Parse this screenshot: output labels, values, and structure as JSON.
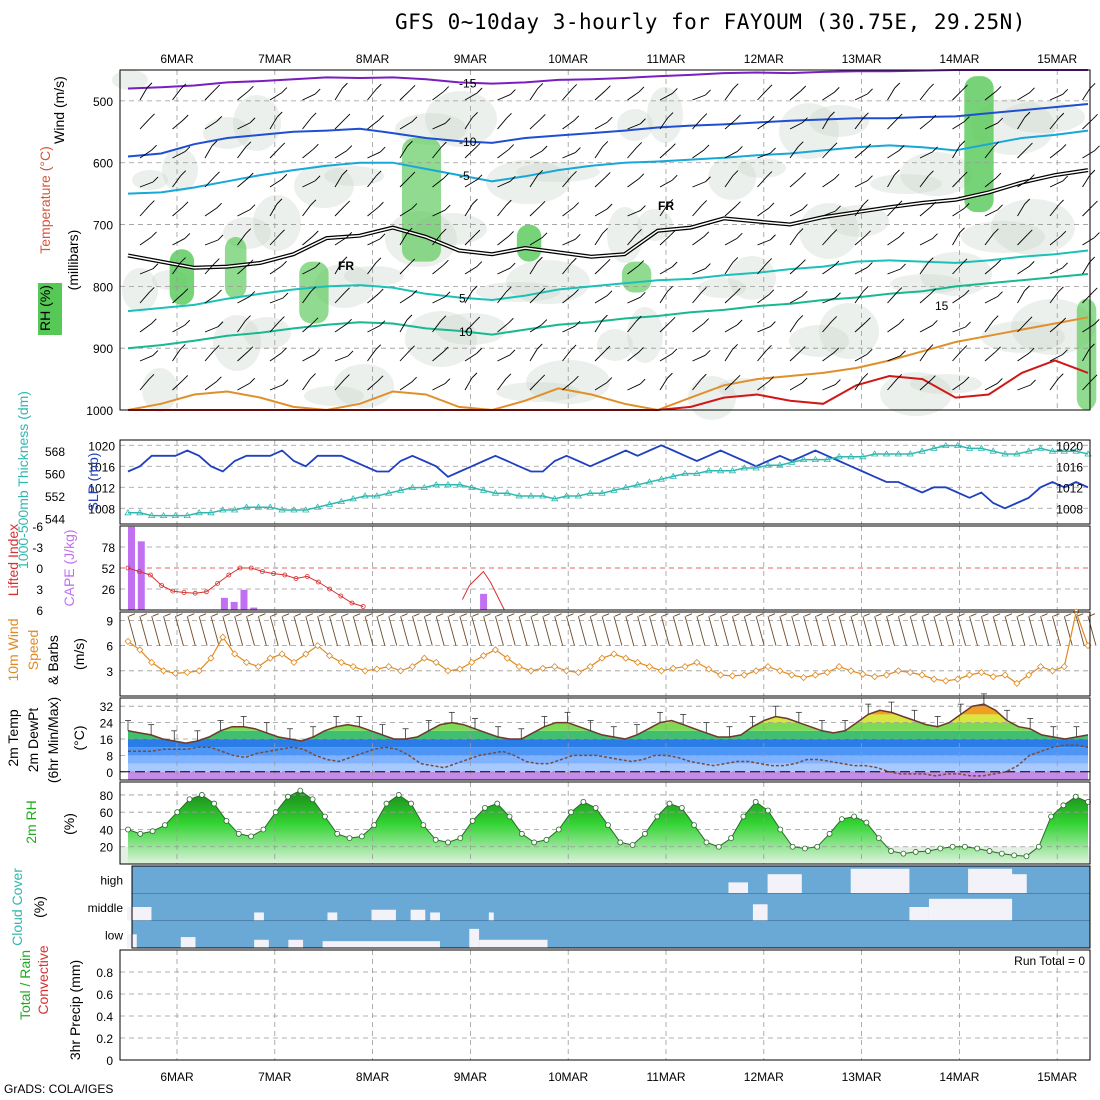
{
  "title": "GFS 0~10day 3-hourly for FAYOUM (30.75E, 29.25N)",
  "credit": "GrADS: COLA/IGES",
  "colors": {
    "wind_contour": "#1f4fd1",
    "temp_cold": "#18b8c8",
    "temp_warm": "#e0902a",
    "rh_fill": "#55c855",
    "slp": "#2040c0",
    "thickness": "#30b8b0",
    "lifted": "#d83030",
    "cape": "#c070f0",
    "wind10": "#e08a20",
    "rh2m": "#22aa22",
    "cloud_bg": "#6aa9d6"
  },
  "chart_data": [
    {
      "type": "heatmap",
      "name": "upper-air",
      "x_dates": [
        "6MAR",
        "7MAR",
        "8MAR",
        "9MAR",
        "10MAR",
        "11MAR",
        "12MAR",
        "13MAR",
        "14MAR",
        "15MAR"
      ],
      "ylabel_wind": "Wind (m/s)",
      "ylabel_temp": "Temperature (°C)",
      "ylabel_rh": "RH (%)",
      "ylabel_units": "(millibars)",
      "y_ticks": [
        500,
        600,
        700,
        800,
        900,
        1000
      ],
      "ylim": [
        450,
        1000
      ],
      "contour_labels": [
        "-15",
        "-10",
        "-10",
        "-5",
        "-5",
        "-5",
        "FR",
        "FR",
        "-5",
        "5",
        "10",
        "15",
        "-10",
        "-15",
        "10",
        "10"
      ],
      "fr_line": [
        750,
        760,
        770,
        768,
        762,
        748,
        722,
        718,
        705,
        720,
        742,
        748,
        738,
        745,
        752,
        748,
        710,
        705,
        690,
        695,
        700,
        688,
        680,
        672,
        665,
        660,
        648,
        632,
        620,
        612
      ],
      "temp_isotherms": [
        {
          "label": "-15",
          "p": [
            480,
            478,
            475,
            470,
            468,
            465,
            462,
            463,
            462,
            465,
            470,
            472,
            470,
            466,
            465,
            463,
            460,
            458,
            455,
            454,
            455,
            453,
            452,
            452,
            451,
            450,
            450,
            450,
            450,
            450
          ]
        },
        {
          "label": "-10",
          "p": [
            590,
            585,
            570,
            560,
            555,
            550,
            548,
            545,
            552,
            560,
            565,
            568,
            560,
            556,
            552,
            548,
            543,
            540,
            538,
            535,
            532,
            530,
            528,
            528,
            526,
            525,
            520,
            515,
            510,
            505
          ]
        },
        {
          "label": "-5",
          "p": [
            650,
            648,
            640,
            630,
            620,
            612,
            605,
            600,
            600,
            610,
            620,
            630,
            622,
            612,
            605,
            600,
            598,
            595,
            592,
            588,
            585,
            580,
            575,
            572,
            575,
            580,
            570,
            560,
            555,
            548
          ]
        },
        {
          "label": "5",
          "p": [
            840,
            835,
            830,
            820,
            812,
            805,
            800,
            798,
            802,
            812,
            818,
            822,
            815,
            805,
            800,
            795,
            790,
            788,
            782,
            778,
            772,
            768,
            760,
            758,
            760,
            762,
            758,
            752,
            748,
            742
          ]
        },
        {
          "label": "10",
          "p": [
            900,
            895,
            888,
            880,
            875,
            868,
            862,
            858,
            860,
            868,
            872,
            878,
            870,
            862,
            858,
            852,
            848,
            842,
            838,
            832,
            828,
            822,
            818,
            812,
            808,
            800,
            795,
            790,
            785,
            780
          ]
        }
      ],
      "warm_isotherms": [
        {
          "label": "15",
          "p": [
            1000,
            990,
            975,
            970,
            980,
            995,
            1000,
            990,
            970,
            975,
            995,
            1000,
            985,
            965,
            975,
            990,
            1000,
            980,
            960,
            950,
            945,
            940,
            932,
            920,
            905,
            890,
            880,
            870,
            860,
            850
          ]
        },
        {
          "label": "20",
          "p": [
            1000,
            1000,
            1000,
            1000,
            1000,
            1000,
            1000,
            1000,
            1000,
            1000,
            1000,
            1000,
            1000,
            1000,
            1000,
            1000,
            1000,
            995,
            980,
            975,
            985,
            990,
            960,
            945,
            950,
            980,
            975,
            940,
            920,
            940
          ]
        }
      ],
      "rh_patches": [
        {
          "day": 0.05,
          "p0": 740,
          "p1": 830,
          "w": 0.25,
          "level": 3
        },
        {
          "day": 0.6,
          "p0": 720,
          "p1": 820,
          "w": 0.22,
          "level": 2
        },
        {
          "day": 1.4,
          "p0": 760,
          "p1": 860,
          "w": 0.3,
          "level": 2
        },
        {
          "day": 2.5,
          "p0": 560,
          "p1": 760,
          "w": 0.4,
          "level": 2
        },
        {
          "day": 3.6,
          "p0": 700,
          "p1": 760,
          "w": 0.25,
          "level": 3
        },
        {
          "day": 4.7,
          "p0": 760,
          "p1": 810,
          "w": 0.3,
          "level": 2
        },
        {
          "day": 8.2,
          "p0": 460,
          "p1": 680,
          "w": 0.3,
          "level": 3
        },
        {
          "day": 9.3,
          "p0": 820,
          "p1": 1000,
          "w": 0.2,
          "level": 2
        }
      ]
    },
    {
      "type": "line",
      "name": "slp-thickness",
      "ylabel_slp": "SLP (mb)",
      "ylabel_thick": "1000-500mb Thickness (dm)",
      "slp_ticks": [
        1008,
        1012,
        1016,
        1020
      ],
      "slp_lim": [
        1005,
        1021
      ],
      "thick_ticks": [
        544,
        552,
        560,
        568
      ],
      "thick_lim": [
        542,
        572
      ],
      "slp": [
        1015,
        1016,
        1018,
        1018,
        1018,
        1019,
        1018,
        1016,
        1015,
        1017,
        1018,
        1018,
        1018,
        1019,
        1017,
        1016,
        1018,
        1018,
        1018,
        1017,
        1016,
        1015,
        1015,
        1017,
        1018,
        1017,
        1016,
        1014,
        1015,
        1016,
        1017,
        1018,
        1017,
        1016,
        1015,
        1015,
        1017,
        1018,
        1017,
        1016,
        1017,
        1018,
        1019,
        1018,
        1019,
        1020,
        1019,
        1018,
        1017,
        1018,
        1019,
        1018,
        1017,
        1016,
        1017,
        1018,
        1017,
        1018,
        1019,
        1018,
        1017,
        1016,
        1015,
        1014,
        1013,
        1013,
        1012,
        1011,
        1012,
        1012,
        1011,
        1010,
        1011,
        1009,
        1008,
        1009,
        1010,
        1012,
        1013,
        1012,
        1013,
        1012
      ],
      "thickness": [
        546,
        546,
        545,
        545,
        545,
        545,
        546,
        546,
        547,
        547,
        548,
        548,
        548,
        547,
        547,
        547,
        548,
        549,
        550,
        551,
        552,
        552,
        553,
        554,
        555,
        555,
        556,
        556,
        556,
        555,
        554,
        553,
        553,
        552,
        552,
        552,
        551,
        552,
        552,
        553,
        553,
        554,
        555,
        556,
        557,
        558,
        559,
        560,
        560,
        561,
        561,
        561,
        562,
        562,
        563,
        563,
        564,
        565,
        565,
        565,
        566,
        566,
        566,
        567,
        567,
        567,
        567,
        568,
        569,
        570,
        570,
        569,
        569,
        568,
        567,
        567,
        568,
        569,
        568,
        568,
        568,
        567
      ]
    },
    {
      "type": "bar",
      "name": "lifted-cape",
      "ylabel_li": "Lifted Index",
      "ylabel_cape": "CAPE (J/kg)",
      "li_ticks": [
        "6",
        "3",
        "0",
        "-3",
        "-6"
      ],
      "li_lim": [
        6,
        -6
      ],
      "cape_ticks": [
        26,
        52,
        78
      ],
      "cape_lim": [
        0,
        104
      ],
      "lifted": [
        0,
        0.5,
        1,
        2.5,
        3.3,
        3.5,
        3.6,
        3.4,
        2.2,
        1,
        0,
        0,
        0.5,
        0.8,
        1,
        1.5,
        1.2,
        2,
        3,
        4,
        5,
        5.5
      ],
      "lifted_start_index": 0,
      "lifted2": [
        4.5,
        2.5,
        1.5,
        0.5,
        2,
        4,
        6
      ],
      "lifted2_start_day": 3.45,
      "cape_bars": [
        {
          "day": 0.0,
          "v": 103
        },
        {
          "day": 0.1,
          "v": 85
        },
        {
          "day": 0.95,
          "v": 15
        },
        {
          "day": 1.05,
          "v": 10
        },
        {
          "day": 1.15,
          "v": 25
        },
        {
          "day": 1.25,
          "v": 3
        },
        {
          "day": 3.6,
          "v": 20
        }
      ]
    },
    {
      "type": "line",
      "name": "wind10m",
      "ylabel": "10m Wind Speed & Barbs (m/s)",
      "y_ticks": [
        3,
        6,
        9
      ],
      "ylim": [
        0,
        10
      ],
      "values": [
        6.5,
        5.5,
        4,
        3,
        2.7,
        2.8,
        3,
        4.5,
        7,
        5,
        4,
        3.5,
        4.5,
        5,
        4,
        5,
        6,
        4.8,
        4,
        3.5,
        3,
        3.2,
        3.5,
        3,
        3.5,
        4.5,
        4,
        3,
        3.2,
        4,
        4.8,
        5.5,
        4.5,
        3.5,
        3,
        3.3,
        3.5,
        3,
        2.8,
        3.5,
        4.5,
        5,
        4.5,
        4,
        3.5,
        3,
        3.3,
        3.5,
        4,
        3.2,
        2.5,
        2.4,
        2.5,
        3,
        3.5,
        3,
        2.5,
        2.2,
        2.5,
        2.8,
        3.5,
        3,
        2.6,
        2.3,
        2.5,
        3,
        2.8,
        2.5,
        2,
        1.8,
        2,
        2.5,
        2.8,
        2.3,
        2.5,
        1.5,
        2.5,
        3.5,
        3,
        3.5,
        10,
        6
      ]
    },
    {
      "type": "area",
      "name": "temperature",
      "ylabel": "2m Temp 2m DewPt (6hr Min/Max) (°C)",
      "y_ticks": [
        0,
        8,
        16,
        24,
        32
      ],
      "ylim": [
        -4,
        36
      ],
      "temp": [
        20,
        19,
        18,
        16,
        15,
        14,
        15,
        17,
        20,
        22,
        22,
        21,
        19,
        17,
        16,
        15,
        17,
        20,
        22,
        23,
        22,
        20,
        18,
        16,
        16,
        17,
        20,
        23,
        24,
        23,
        21,
        19,
        17,
        16,
        16,
        19,
        22,
        24,
        24,
        22,
        20,
        18,
        17,
        16,
        18,
        21,
        24,
        25,
        23,
        21,
        19,
        17,
        17,
        18,
        22,
        25,
        27,
        26,
        24,
        22,
        20,
        19,
        20,
        24,
        28,
        30,
        29,
        27,
        25,
        23,
        22,
        24,
        28,
        32,
        33,
        30,
        25,
        22,
        21,
        18,
        17,
        16,
        17,
        18
      ],
      "dewpt": [
        10,
        10,
        10,
        11,
        11,
        11,
        12,
        12,
        10,
        8,
        7,
        9,
        10,
        11,
        12,
        11,
        8,
        6,
        5,
        7,
        9,
        11,
        12,
        11,
        8,
        4,
        3,
        2,
        4,
        6,
        8,
        9,
        10,
        8,
        5,
        4,
        4,
        6,
        8,
        8,
        8,
        7,
        6,
        5,
        6,
        8,
        8,
        7,
        5,
        4,
        3,
        4,
        5,
        5,
        4,
        3,
        3,
        4,
        6,
        6,
        5,
        4,
        3,
        3,
        2,
        0,
        -1,
        -1,
        -1,
        -2,
        -1,
        -1,
        -2,
        -2,
        -1,
        0,
        3,
        8,
        10,
        12,
        13,
        13,
        12
      ]
    },
    {
      "type": "area",
      "name": "rh2m",
      "ylabel": "2m RH (%)",
      "y_ticks": [
        20,
        40,
        60,
        80
      ],
      "ylim": [
        0,
        95
      ],
      "values": [
        40,
        35,
        38,
        45,
        60,
        75,
        80,
        70,
        50,
        35,
        32,
        40,
        60,
        78,
        85,
        75,
        55,
        35,
        30,
        32,
        45,
        70,
        80,
        70,
        45,
        28,
        25,
        30,
        50,
        65,
        70,
        55,
        35,
        25,
        28,
        40,
        60,
        72,
        65,
        45,
        25,
        22,
        35,
        55,
        70,
        65,
        45,
        25,
        20,
        30,
        55,
        72,
        62,
        40,
        20,
        18,
        20,
        35,
        52,
        55,
        48,
        30,
        15,
        12,
        14,
        15,
        18,
        20,
        20,
        18,
        15,
        12,
        10,
        9,
        20,
        55,
        68,
        78,
        72
      ]
    },
    {
      "type": "heatmap",
      "name": "cloud-cover",
      "ylabel": "Cloud Cover (%)",
      "y_labels": [
        "high",
        "middle",
        "low"
      ],
      "high_blocks": [
        {
          "d0": 6.15,
          "d1": 6.35,
          "a": 0.4
        },
        {
          "d0": 6.55,
          "d1": 6.9,
          "a": 0.7
        },
        {
          "d0": 7.4,
          "d1": 8.0,
          "a": 0.9
        },
        {
          "d0": 8.6,
          "d1": 9.05,
          "a": 0.9
        },
        {
          "d0": 9.0,
          "d1": 9.2,
          "a": 0.7
        }
      ],
      "mid_blocks": [
        {
          "d0": 0.0,
          "d1": 0.25,
          "a": 0.5
        },
        {
          "d0": 1.3,
          "d1": 1.4,
          "a": 0.3
        },
        {
          "d0": 2.05,
          "d1": 2.15,
          "a": 0.3
        },
        {
          "d0": 2.5,
          "d1": 2.75,
          "a": 0.4
        },
        {
          "d0": 2.9,
          "d1": 3.05,
          "a": 0.4
        },
        {
          "d0": 3.1,
          "d1": 3.2,
          "a": 0.3
        },
        {
          "d0": 3.7,
          "d1": 3.75,
          "a": 0.3
        },
        {
          "d0": 6.4,
          "d1": 6.55,
          "a": 0.6
        },
        {
          "d0": 8.0,
          "d1": 8.2,
          "a": 0.5
        },
        {
          "d0": 8.2,
          "d1": 9.05,
          "a": 0.8
        }
      ],
      "low_blocks": [
        {
          "d0": 0.0,
          "d1": 0.1,
          "a": 0.5
        },
        {
          "d0": 0.55,
          "d1": 0.7,
          "a": 0.4
        },
        {
          "d0": 1.3,
          "d1": 1.45,
          "a": 0.3
        },
        {
          "d0": 1.65,
          "d1": 1.8,
          "a": 0.3
        },
        {
          "d0": 2.0,
          "d1": 3.2,
          "a": 0.25
        },
        {
          "d0": 3.5,
          "d1": 3.6,
          "a": 0.7
        },
        {
          "d0": 3.6,
          "d1": 4.3,
          "a": 0.3
        }
      ]
    },
    {
      "type": "line",
      "name": "precip",
      "ylabel_a": "Total / Rain",
      "ylabel_b": "Convective",
      "ylabel_c": "3hr Precip (mm)",
      "y_ticks": [
        "0",
        "0.2",
        "0.4",
        "0.6",
        "0.8"
      ],
      "ylim": [
        0,
        1.0
      ],
      "run_total": "Run Total = 0",
      "values": []
    }
  ]
}
